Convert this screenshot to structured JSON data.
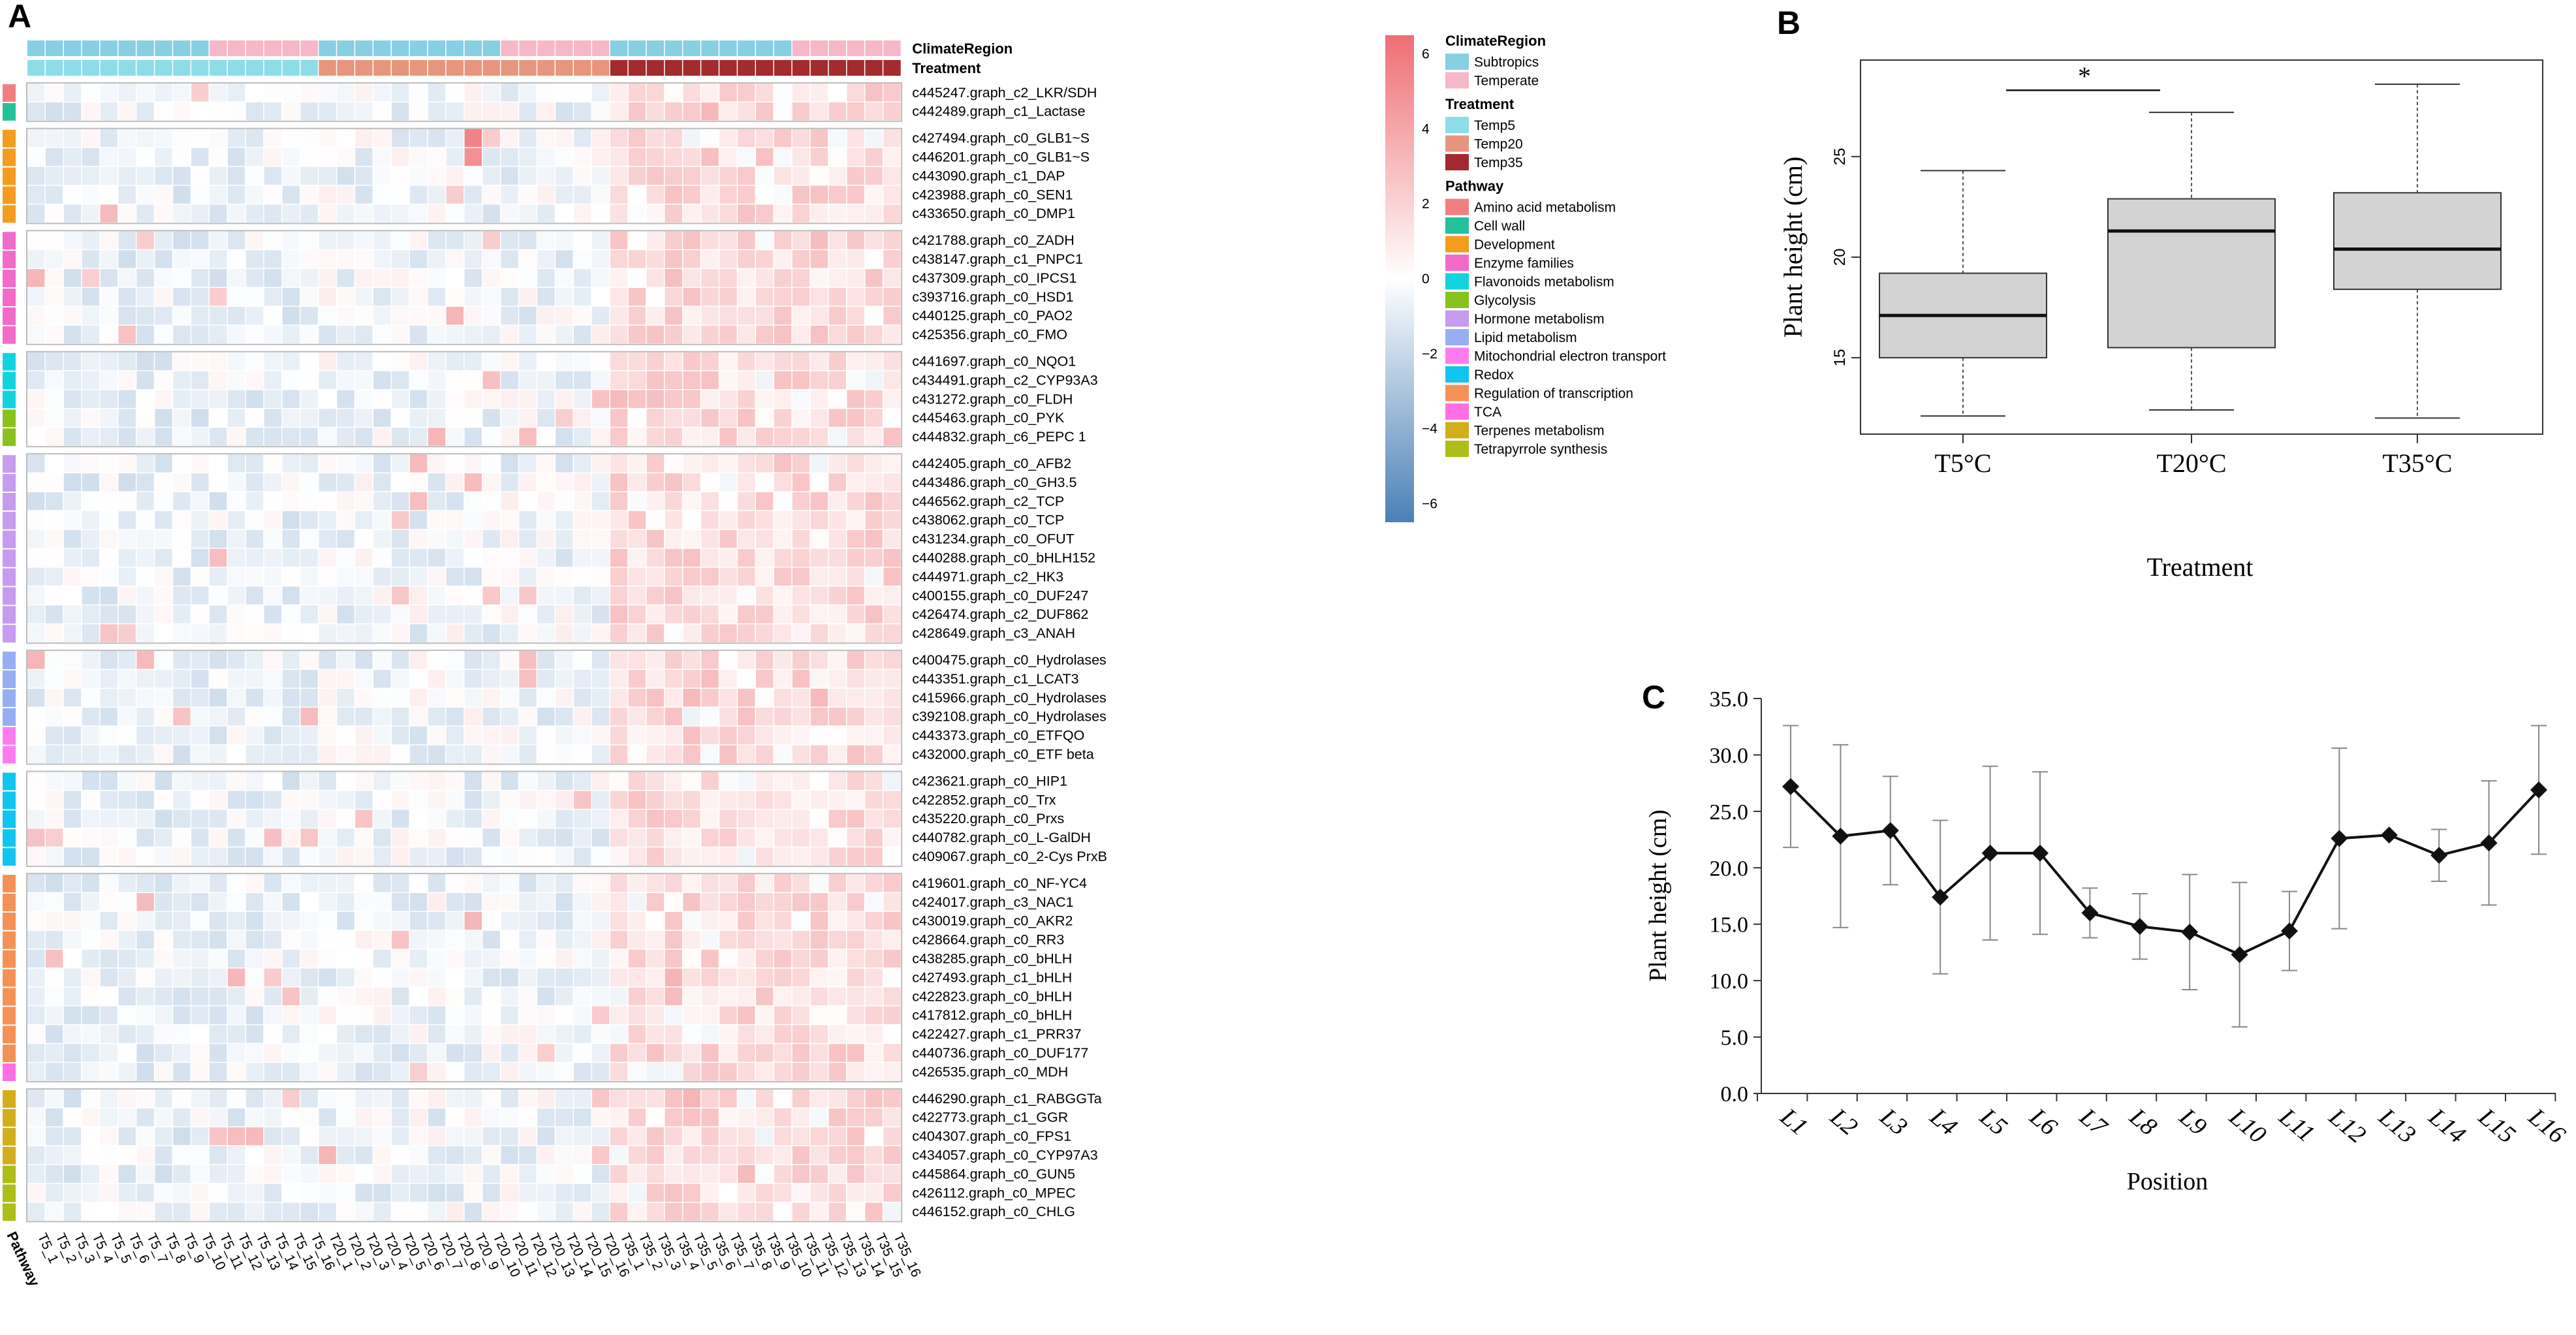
{
  "colors": {
    "subtropics": "#87CFE3",
    "temperate": "#F6B8C8",
    "temp5": "#8DDDE9",
    "temp20": "#E8957D",
    "temp35": "#A32A2E",
    "high": "#EE6F74",
    "mid": "#FFFFFF",
    "low": "#4A80B7",
    "pathway": {
      "Amino acid metabolism": "#F08080",
      "Cell wall": "#25C19A",
      "Development": "#F39C1E",
      "Enzyme families": "#F26BC8",
      "Flavonoids metabolism": "#14D3E0",
      "Glycolysis": "#88C21C",
      "Hormone metabolism": "#C69BF0",
      "Lipid metabolism": "#97AEF5",
      "Mitochondrial electron transport": "#FF7CF0",
      "Redox": "#10C5F0",
      "Regulation of transcription": "#F49256",
      "TCA": "#FF6FE3",
      "Terpenes metabolism": "#D3AE1B",
      "Tetrapyrrole synthesis": "#AEBE18"
    }
  },
  "chart_data": [
    {
      "panel": "A",
      "type": "heatmap",
      "annotation_labels": [
        "ClimateRegion",
        "Treatment"
      ],
      "pathway_axis_label": "Pathway",
      "samples": [
        "T5_1",
        "T5_2",
        "T5_3",
        "T5_4",
        "T5_5",
        "T5_6",
        "T5_7",
        "T5_8",
        "T5_9",
        "T5_10",
        "T5_11",
        "T5_12",
        "T5_13",
        "T5_14",
        "T5_15",
        "T5_16",
        "T20_1",
        "T20_2",
        "T20_3",
        "T20_4",
        "T20_5",
        "T20_6",
        "T20_7",
        "T20_8",
        "T20_9",
        "T20_10",
        "T20_11",
        "T20_12",
        "T20_13",
        "T20_14",
        "T20_15",
        "T20_16",
        "T35_1",
        "T35_2",
        "T35_3",
        "T35_4",
        "T35_5",
        "T35_6",
        "T35_7",
        "T35_8",
        "T35_9",
        "T35_10",
        "T35_11",
        "T35_12",
        "T35_13",
        "T35_14",
        "T35_15",
        "T35_16"
      ],
      "climate_region": [
        "Subtropics",
        "Subtropics",
        "Subtropics",
        "Subtropics",
        "Subtropics",
        "Subtropics",
        "Subtropics",
        "Subtropics",
        "Subtropics",
        "Subtropics",
        "Temperate",
        "Temperate",
        "Temperate",
        "Temperate",
        "Temperate",
        "Temperate",
        "Subtropics",
        "Subtropics",
        "Subtropics",
        "Subtropics",
        "Subtropics",
        "Subtropics",
        "Subtropics",
        "Subtropics",
        "Subtropics",
        "Subtropics",
        "Temperate",
        "Temperate",
        "Temperate",
        "Temperate",
        "Temperate",
        "Temperate",
        "Subtropics",
        "Subtropics",
        "Subtropics",
        "Subtropics",
        "Subtropics",
        "Subtropics",
        "Subtropics",
        "Subtropics",
        "Subtropics",
        "Subtropics",
        "Temperate",
        "Temperate",
        "Temperate",
        "Temperate",
        "Temperate",
        "Temperate"
      ],
      "treatment": [
        "Temp5",
        "Temp5",
        "Temp5",
        "Temp5",
        "Temp5",
        "Temp5",
        "Temp5",
        "Temp5",
        "Temp5",
        "Temp5",
        "Temp5",
        "Temp5",
        "Temp5",
        "Temp5",
        "Temp5",
        "Temp5",
        "Temp20",
        "Temp20",
        "Temp20",
        "Temp20",
        "Temp20",
        "Temp20",
        "Temp20",
        "Temp20",
        "Temp20",
        "Temp20",
        "Temp20",
        "Temp20",
        "Temp20",
        "Temp20",
        "Temp20",
        "Temp20",
        "Temp35",
        "Temp35",
        "Temp35",
        "Temp35",
        "Temp35",
        "Temp35",
        "Temp35",
        "Temp35",
        "Temp35",
        "Temp35",
        "Temp35",
        "Temp35",
        "Temp35",
        "Temp35",
        "Temp35",
        "Temp35"
      ],
      "groups": [
        {
          "genes": [
            {
              "name": "c445247.graph_c2_LKR/SDH",
              "pathway": "Amino acid metabolism"
            },
            {
              "name": "c442489.graph_c1_Lactase",
              "pathway": "Cell wall"
            }
          ]
        },
        {
          "genes": [
            {
              "name": "c427494.graph_c0_GLB1~S",
              "pathway": "Development"
            },
            {
              "name": "c446201.graph_c0_GLB1~S",
              "pathway": "Development"
            },
            {
              "name": "c443090.graph_c1_DAP",
              "pathway": "Development"
            },
            {
              "name": "c423988.graph_c0_SEN1",
              "pathway": "Development"
            },
            {
              "name": "c433650.graph_c0_DMP1",
              "pathway": "Development"
            }
          ]
        },
        {
          "genes": [
            {
              "name": "c421788.graph_c0_ZADH",
              "pathway": "Enzyme families"
            },
            {
              "name": "c438147.graph_c1_PNPC1",
              "pathway": "Enzyme families"
            },
            {
              "name": "c437309.graph_c0_IPCS1",
              "pathway": "Enzyme families"
            },
            {
              "name": "c393716.graph_c0_HSD1",
              "pathway": "Enzyme families"
            },
            {
              "name": "c440125.graph_c0_PAO2",
              "pathway": "Enzyme families"
            },
            {
              "name": "c425356.graph_c0_FMO",
              "pathway": "Enzyme families"
            }
          ]
        },
        {
          "genes": [
            {
              "name": "c441697.graph_c0_NQO1",
              "pathway": "Flavonoids metabolism"
            },
            {
              "name": "c434491.graph_c2_CYP93A3",
              "pathway": "Flavonoids metabolism"
            },
            {
              "name": "c431272.graph_c0_FLDH",
              "pathway": "Flavonoids metabolism"
            },
            {
              "name": "c445463.graph_c0_PYK",
              "pathway": "Glycolysis"
            },
            {
              "name": "c444832.graph_c6_PEPC 1",
              "pathway": "Glycolysis"
            }
          ]
        },
        {
          "genes": [
            {
              "name": "c442405.graph_c0_AFB2",
              "pathway": "Hormone metabolism"
            },
            {
              "name": "c443486.graph_c0_GH3.5",
              "pathway": "Hormone metabolism"
            },
            {
              "name": "c446562.graph_c2_TCP",
              "pathway": "Hormone metabolism"
            },
            {
              "name": "c438062.graph_c0_TCP",
              "pathway": "Hormone metabolism"
            },
            {
              "name": "c431234.graph_c0_OFUT",
              "pathway": "Hormone metabolism"
            },
            {
              "name": "c440288.graph_c0_bHLH152",
              "pathway": "Hormone metabolism"
            },
            {
              "name": "c444971.graph_c2_HK3",
              "pathway": "Hormone metabolism"
            },
            {
              "name": "c400155.graph_c0_DUF247",
              "pathway": "Hormone metabolism"
            },
            {
              "name": "c426474.graph_c2_DUF862",
              "pathway": "Hormone metabolism"
            },
            {
              "name": "c428649.graph_c3_ANAH",
              "pathway": "Hormone metabolism"
            }
          ]
        },
        {
          "genes": [
            {
              "name": "c400475.graph_c0_Hydrolases",
              "pathway": "Lipid metabolism"
            },
            {
              "name": "c443351.graph_c1_LCAT3",
              "pathway": "Lipid metabolism"
            },
            {
              "name": "c415966.graph_c0_Hydrolases",
              "pathway": "Lipid metabolism"
            },
            {
              "name": "c392108.graph_c0_Hydrolases",
              "pathway": "Lipid metabolism"
            },
            {
              "name": "c443373.graph_c0_ETFQO",
              "pathway": "Mitochondrial electron transport"
            },
            {
              "name": "c432000.graph_c0_ETF beta",
              "pathway": "Mitochondrial electron transport"
            }
          ]
        },
        {
          "genes": [
            {
              "name": "c423621.graph_c0_HIP1",
              "pathway": "Redox"
            },
            {
              "name": "c422852.graph_c0_Trx",
              "pathway": "Redox"
            },
            {
              "name": "c435220.graph_c0_Prxs",
              "pathway": "Redox"
            },
            {
              "name": "c440782.graph_c0_L-GalDH",
              "pathway": "Redox"
            },
            {
              "name": "c409067.graph_c0_2-Cys PrxB",
              "pathway": "Redox"
            }
          ]
        },
        {
          "genes": [
            {
              "name": "c419601.graph_c0_NF-YC4",
              "pathway": "Regulation of transcription"
            },
            {
              "name": "c424017.graph_c3_NAC1",
              "pathway": "Regulation of transcription"
            },
            {
              "name": "c430019.graph_c0_AKR2",
              "pathway": "Regulation of transcription"
            },
            {
              "name": "c428664.graph_c0_RR3",
              "pathway": "Regulation of transcription"
            },
            {
              "name": "c438285.graph_c0_bHLH",
              "pathway": "Regulation of transcription"
            },
            {
              "name": "c427493.graph_c1_bHLH",
              "pathway": "Regulation of transcription"
            },
            {
              "name": "c422823.graph_c0_bHLH",
              "pathway": "Regulation of transcription"
            },
            {
              "name": "c417812.graph_c0_bHLH",
              "pathway": "Regulation of transcription"
            },
            {
              "name": "c422427.graph_c1_PRR37",
              "pathway": "Regulation of transcription"
            },
            {
              "name": "c440736.graph_c0_DUF177",
              "pathway": "Regulation of transcription"
            },
            {
              "name": "c426535.graph_c0_MDH",
              "pathway": "TCA"
            }
          ]
        },
        {
          "genes": [
            {
              "name": "c446290.graph_c1_RABGGTa",
              "pathway": "Terpenes metabolism"
            },
            {
              "name": "c422773.graph_c1_GGR",
              "pathway": "Terpenes metabolism"
            },
            {
              "name": "c404307.graph_c0_FPS1",
              "pathway": "Terpenes metabolism"
            },
            {
              "name": "c434057.graph_c0_CYP97A3",
              "pathway": "Terpenes metabolism"
            },
            {
              "name": "c445864.graph_c0_GUN5",
              "pathway": "Tetrapyrrole synthesis"
            },
            {
              "name": "c426112.graph_c0_MPEC",
              "pathway": "Tetrapyrrole synthesis"
            },
            {
              "name": "c446152.graph_c0_CHLG",
              "pathway": "Tetrapyrrole synthesis"
            }
          ]
        }
      ],
      "value_range": [
        -6.5,
        6.5
      ],
      "value_note": "Row-scaled expression; Temp35 columns mostly positive (about 1 to 3), Temp5/Temp20 mostly slightly negative; strong outliers at GLB1~S (T20_9, ~5.5) and several single cells ~3.",
      "colorbar_ticks": [
        "6",
        "4",
        "2",
        "0",
        "−2",
        "−4",
        "−6"
      ],
      "legend": {
        "ClimateRegion": [
          "Subtropics",
          "Temperate"
        ],
        "Treatment": [
          "Temp5",
          "Temp20",
          "Temp35"
        ],
        "Pathway": [
          "Amino acid metabolism",
          "Cell wall",
          "Development",
          "Enzyme families",
          "Flavonoids metabolism",
          "Glycolysis",
          "Hormone metabolism",
          "Lipid metabolism",
          "Mitochondrial electron transport",
          "Redox",
          "Regulation of transcription",
          "TCA",
          "Terpenes metabolism",
          "Tetrapyrrole synthesis"
        ]
      }
    },
    {
      "panel": "B",
      "type": "box",
      "categories": [
        "T5°C",
        "T20°C",
        "T35°C"
      ],
      "boxes": [
        {
          "min": 12.1,
          "q1": 15.0,
          "median": 17.1,
          "q3": 19.2,
          "max": 24.3
        },
        {
          "min": 12.4,
          "q1": 15.5,
          "median": 21.3,
          "q3": 22.9,
          "max": 27.2
        },
        {
          "min": 12.0,
          "q1": 18.4,
          "median": 20.4,
          "q3": 23.2,
          "max": 28.6
        }
      ],
      "ylim": [
        11.2,
        29.8
      ],
      "yticks": [
        15,
        20,
        25
      ],
      "ylabel": "Plant height (cm)",
      "xlabel": "Treatment",
      "significance": {
        "between": [
          "T5°C",
          "T20°C"
        ],
        "label": "*"
      }
    },
    {
      "panel": "C",
      "type": "line",
      "x": [
        "L1",
        "L2",
        "L3",
        "L4",
        "L5",
        "L6",
        "L7",
        "L8",
        "L9",
        "L10",
        "L11",
        "L12",
        "L13",
        "L14",
        "L15",
        "L16"
      ],
      "values": [
        27.2,
        22.8,
        23.3,
        17.4,
        21.3,
        21.3,
        16.0,
        14.8,
        14.3,
        12.3,
        14.4,
        22.6,
        22.9,
        21.1,
        22.2,
        26.9
      ],
      "errors": [
        5.4,
        8.1,
        4.8,
        6.8,
        7.7,
        7.2,
        2.2,
        2.9,
        5.1,
        6.4,
        3.5,
        8.0,
        0,
        2.3,
        5.5,
        5.7
      ],
      "ylim": [
        0,
        35
      ],
      "yticks": [
        "0.0",
        "5.0",
        "10.0",
        "15.0",
        "20.0",
        "25.0",
        "30.0",
        "35.0"
      ],
      "ylabel": "Plant height (cm)",
      "xlabel": "Position"
    }
  ]
}
